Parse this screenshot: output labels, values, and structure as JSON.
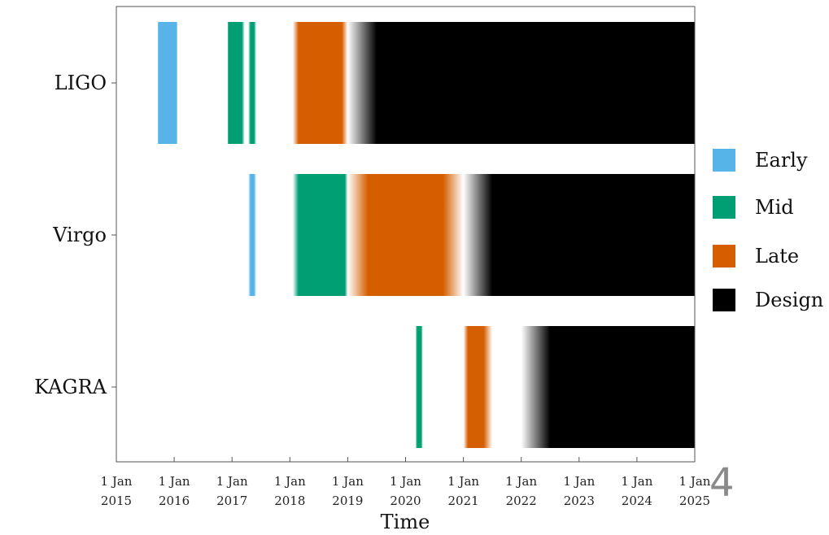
{
  "page_number": "4",
  "colors": {
    "early": "#56b4e9",
    "mid": "#009e73",
    "late": "#d55e00",
    "design": "#000000"
  },
  "chart_data": {
    "type": "timeline",
    "xlabel": "Time",
    "xlim": [
      2015.0,
      2025.0
    ],
    "x_ticks": [
      {
        "top": "1 Jan",
        "bottom": "2015",
        "x": 2015
      },
      {
        "top": "1 Jan",
        "bottom": "2016",
        "x": 2016
      },
      {
        "top": "1 Jan",
        "bottom": "2017",
        "x": 2017
      },
      {
        "top": "1 Jan",
        "bottom": "2018",
        "x": 2018
      },
      {
        "top": "1 Jan",
        "bottom": "2019",
        "x": 2019
      },
      {
        "top": "1 Jan",
        "bottom": "2020",
        "x": 2020
      },
      {
        "top": "1 Jan",
        "bottom": "2021",
        "x": 2021
      },
      {
        "top": "1 Jan",
        "bottom": "2022",
        "x": 2022
      },
      {
        "top": "1 Jan",
        "bottom": "2023",
        "x": 2023
      },
      {
        "top": "1 Jan",
        "bottom": "2024",
        "x": 2024
      },
      {
        "top": "1 Jan",
        "bottom": "2025",
        "x": 2025
      }
    ],
    "legend": {
      "placement": "right",
      "entries": [
        {
          "key": "early",
          "label": "Early"
        },
        {
          "key": "mid",
          "label": "Mid"
        },
        {
          "key": "late",
          "label": "Late"
        },
        {
          "key": "design",
          "label": "Design"
        }
      ]
    },
    "detectors": [
      {
        "name": "LIGO",
        "segments": [
          {
            "phase": "early",
            "start": 2015.72,
            "end": 2016.05,
            "fade_start": 0,
            "fade_end": 0
          },
          {
            "phase": "mid",
            "start": 2016.93,
            "end": 2017.22,
            "fade_start": 0,
            "fade_end": 0.05
          },
          {
            "phase": "mid",
            "start": 2017.28,
            "end": 2017.42,
            "fade_start": 0.04,
            "fade_end": 0.04
          },
          {
            "phase": "late",
            "start": 2018.05,
            "end": 2019.0,
            "fade_start": 0.1,
            "fade_end": 0.1
          },
          {
            "phase": "design",
            "start": 2019.0,
            "end": 2025.0,
            "fade_start": 0.5,
            "fade_end": 0
          }
        ]
      },
      {
        "name": "Virgo",
        "segments": [
          {
            "phase": "early",
            "start": 2017.28,
            "end": 2017.42,
            "fade_start": 0.04,
            "fade_end": 0.04
          },
          {
            "phase": "mid",
            "start": 2018.05,
            "end": 2019.0,
            "fade_start": 0.1,
            "fade_end": 0.05
          },
          {
            "phase": "late",
            "start": 2019.0,
            "end": 2021.0,
            "fade_start": 0.35,
            "fade_end": 0.35
          },
          {
            "phase": "design",
            "start": 2021.0,
            "end": 2025.0,
            "fade_start": 0.5,
            "fade_end": 0
          }
        ]
      },
      {
        "name": "KAGRA",
        "segments": [
          {
            "phase": "mid",
            "start": 2020.17,
            "end": 2020.3,
            "fade_start": 0.03,
            "fade_end": 0.03
          },
          {
            "phase": "late",
            "start": 2021.0,
            "end": 2021.5,
            "fade_start": 0.08,
            "fade_end": 0.15
          },
          {
            "phase": "design",
            "start": 2022.0,
            "end": 2025.0,
            "fade_start": 0.5,
            "fade_end": 0
          }
        ]
      }
    ]
  }
}
